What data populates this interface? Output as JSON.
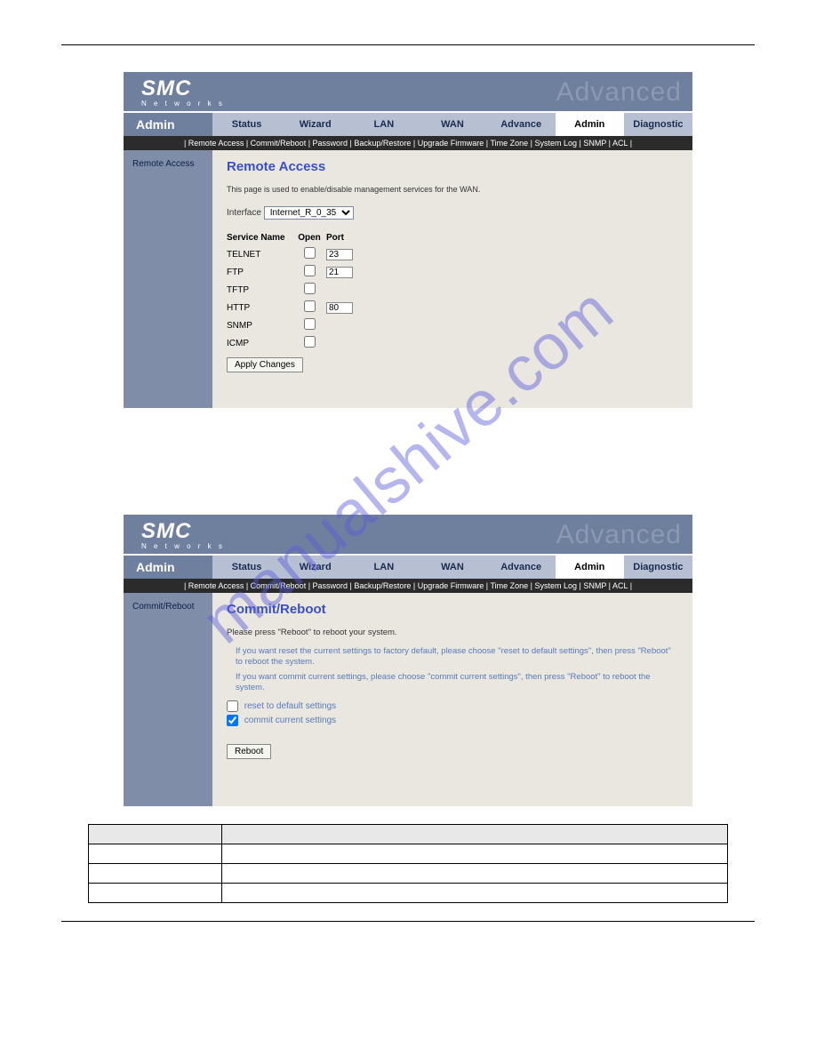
{
  "watermark": "manualshive.com",
  "brand": {
    "logo": "SMC",
    "sub": "N e t w o r k s",
    "banner": "Advanced"
  },
  "nav": {
    "section": "Admin",
    "tabs": [
      "Status",
      "Wizard",
      "LAN",
      "WAN",
      "Advance",
      "Admin",
      "Diagnostic"
    ],
    "active": "Admin"
  },
  "subnav": [
    "Remote Access",
    "Commit/Reboot",
    "Password",
    "Backup/Restore",
    "Upgrade Firmware",
    "Time Zone",
    "System Log",
    "SNMP",
    "ACL"
  ],
  "shot1": {
    "side": "Remote Access",
    "title": "Remote Access",
    "desc": "This page is used to enable/disable management services for the WAN.",
    "iface_label": "Interface",
    "iface_value": "Internet_R_0_35",
    "cols": [
      "Service Name",
      "Open",
      "Port"
    ],
    "rows": [
      {
        "name": "TELNET",
        "open": false,
        "port": "23"
      },
      {
        "name": "FTP",
        "open": false,
        "port": "21"
      },
      {
        "name": "TFTP",
        "open": false,
        "port": ""
      },
      {
        "name": "HTTP",
        "open": false,
        "port": "80"
      },
      {
        "name": "SNMP",
        "open": false,
        "port": ""
      },
      {
        "name": "ICMP",
        "open": false,
        "port": ""
      }
    ],
    "apply": "Apply Changes"
  },
  "shot2": {
    "side": "Commit/Reboot",
    "title": "Commit/Reboot",
    "desc": "Please press \"Reboot\" to reboot your system.",
    "p1": "If you want reset the current settings to factory default, please choose \"reset to default settings\", then press \"Reboot\" to reboot the system.",
    "p2": "If you want commit current settings, please choose \"commit current settings\", then press \"Reboot\" to reboot the system.",
    "cb1_label": "reset to default settings",
    "cb1_checked": false,
    "cb2_label": "commit current settings",
    "cb2_checked": true,
    "reboot": "Reboot"
  },
  "doc_table": {
    "headers": [
      "",
      ""
    ],
    "rows": [
      [
        "",
        ""
      ],
      [
        "",
        ""
      ],
      [
        "",
        ""
      ]
    ]
  }
}
